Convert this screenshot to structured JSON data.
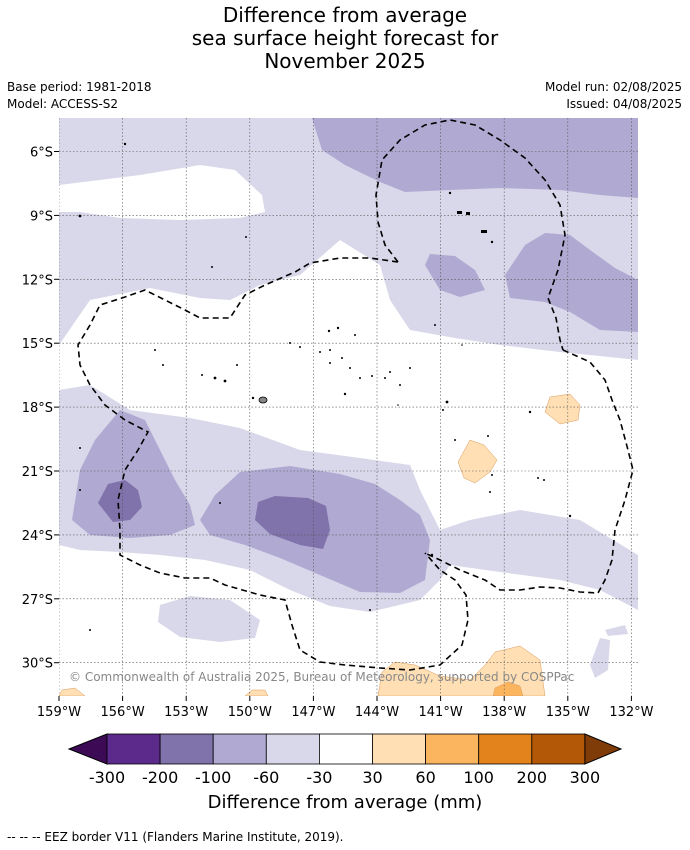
{
  "title": {
    "line1": "Difference from average",
    "line2": "sea surface height forecast for",
    "line3": "November 2025"
  },
  "meta": {
    "base_period": "Base period: 1981-2018",
    "model": "Model: ACCESS-S2",
    "model_run": "Model run: 02/08/2025",
    "issued": "Issued: 04/08/2025"
  },
  "map": {
    "lon_ticks": [
      "159°W",
      "156°W",
      "153°W",
      "150°W",
      "147°W",
      "144°W",
      "141°W",
      "138°W",
      "135°W",
      "132°W"
    ],
    "lat_ticks": [
      "6°S",
      "9°S",
      "12°S",
      "15°S",
      "18°S",
      "21°S",
      "24°S",
      "27°S",
      "30°S"
    ],
    "copyright": "© Commonwealth of Australia 2025, Bureau of Meteorology, supported by COSPPac"
  },
  "colorbar": {
    "labels": [
      "-300",
      "-200",
      "-100",
      "-60",
      "-30",
      "30",
      "60",
      "100",
      "200",
      "300"
    ],
    "colors": [
      "#3d0a55",
      "#5b2a8a",
      "#8072aa",
      "#b0a9d2",
      "#d8d8ea",
      "#ffffff",
      "#ffdfb3",
      "#fbb55f",
      "#e3831c",
      "#b35806",
      "#7f3b08"
    ],
    "title": "Difference from average (mm)"
  },
  "footnote": "--  --  -- EEZ border V11 (Flanders Marine Institute, 2019)."
}
